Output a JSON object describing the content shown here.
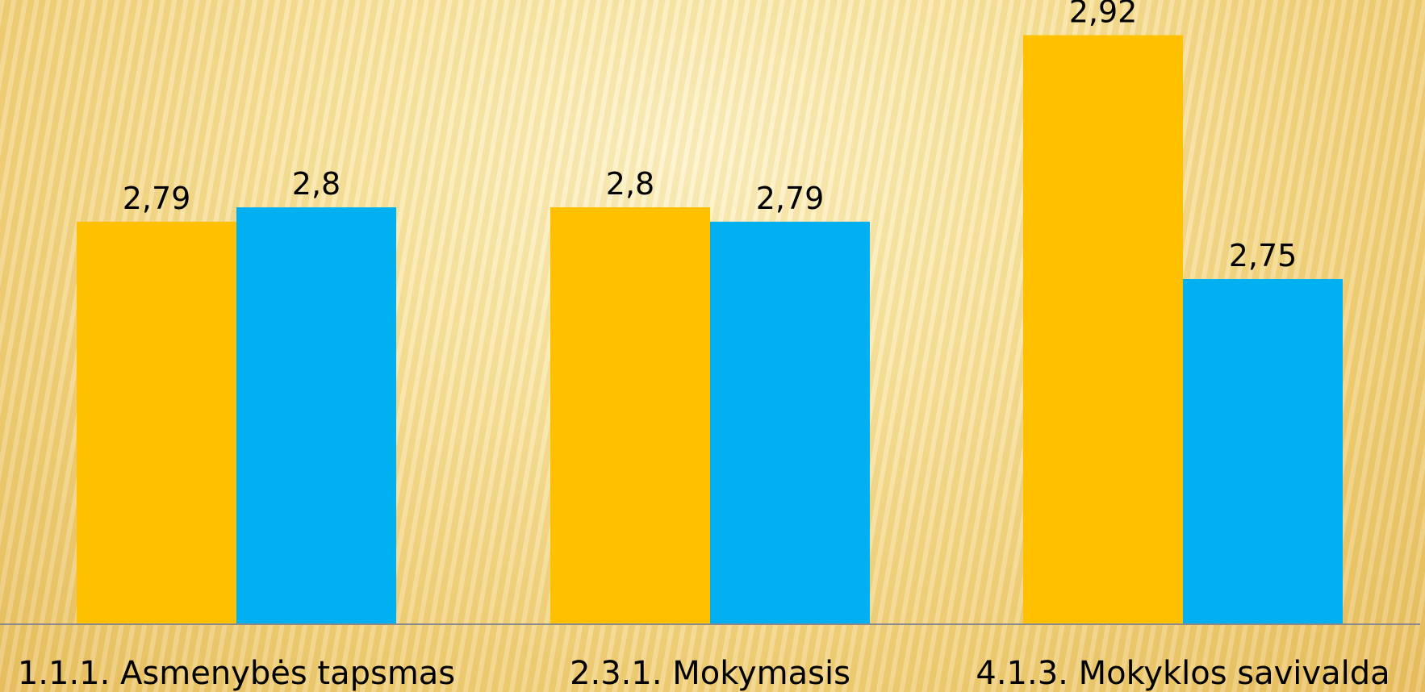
{
  "chart_data": {
    "type": "bar",
    "categories": [
      "1.1.1. Asmenybės tapsmas",
      "2.3.1. Mokymasis",
      "4.1.3. Mokyklos savivalda"
    ],
    "series": [
      {
        "color": "#FFC000",
        "values": [
          2.79,
          2.8,
          2.92
        ],
        "labels": [
          "2,79",
          "2,8",
          "2,92"
        ]
      },
      {
        "color": "#00B0F0",
        "values": [
          2.8,
          2.79,
          2.75
        ],
        "labels": [
          "2,8",
          "2,79",
          "2,75"
        ]
      }
    ],
    "ylim": [
      2.51,
      2.94
    ],
    "grid": false,
    "legend": "none",
    "axis_color": "#8a8a8a"
  }
}
